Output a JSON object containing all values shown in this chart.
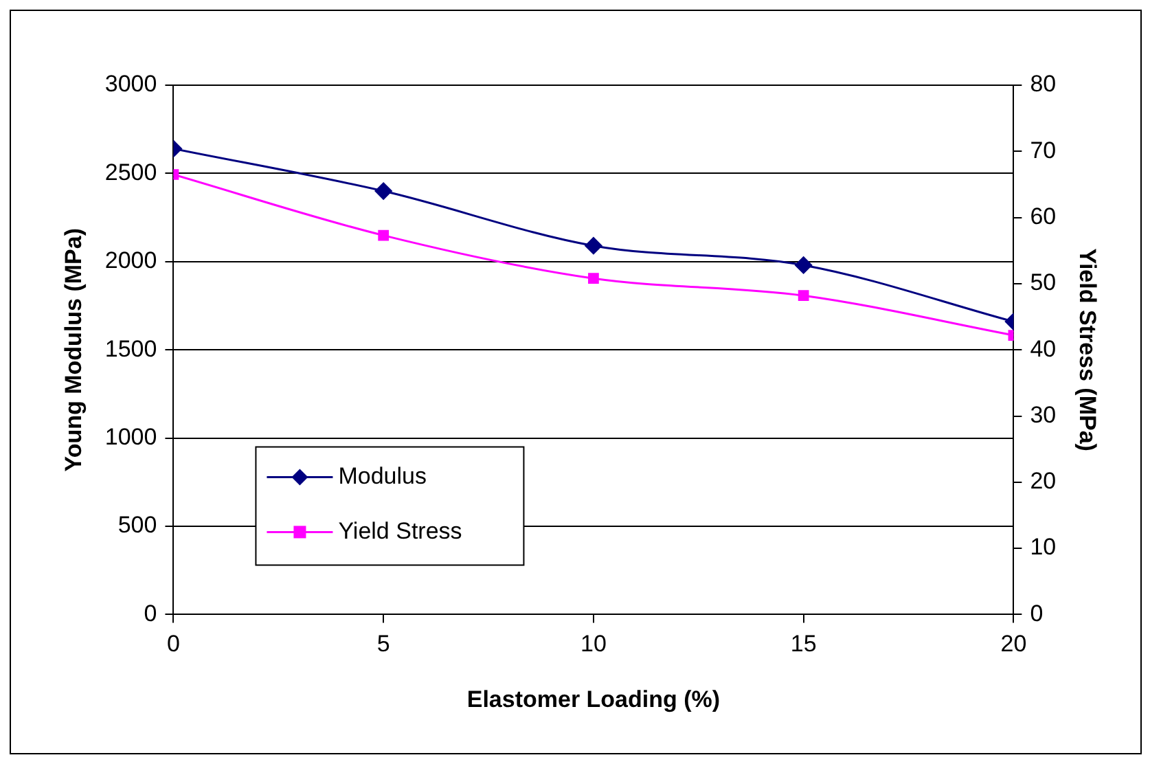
{
  "chart_data": {
    "type": "line",
    "xlabel": "Elastomer Loading (%)",
    "ylabel": "Young Modulus (MPa)",
    "y2label": "Yield Stress (MPa)",
    "x": [
      0,
      5,
      10,
      15,
      20
    ],
    "series": [
      {
        "name": "Modulus",
        "color": "#000080",
        "marker": "diamond",
        "values": [
          2640,
          2400,
          2090,
          1980,
          1660
        ]
      },
      {
        "name": "Yield Stress",
        "color": "#ff00ff",
        "marker": "square",
        "axis": "y2",
        "values": [
          66.5,
          57.3,
          50.8,
          48.2,
          42.2
        ]
      }
    ],
    "xlim": [
      0,
      20
    ],
    "xticks": [
      0,
      5,
      10,
      15,
      20
    ],
    "ylim": [
      0,
      3000
    ],
    "yticks": [
      0,
      500,
      1000,
      1500,
      2000,
      2500,
      3000
    ],
    "y2lim": [
      0,
      80
    ],
    "y2ticks": [
      0,
      10,
      20,
      30,
      40,
      50,
      60,
      70,
      80
    ],
    "grid": "y",
    "legend": "bottom left",
    "line_style": "solid"
  }
}
